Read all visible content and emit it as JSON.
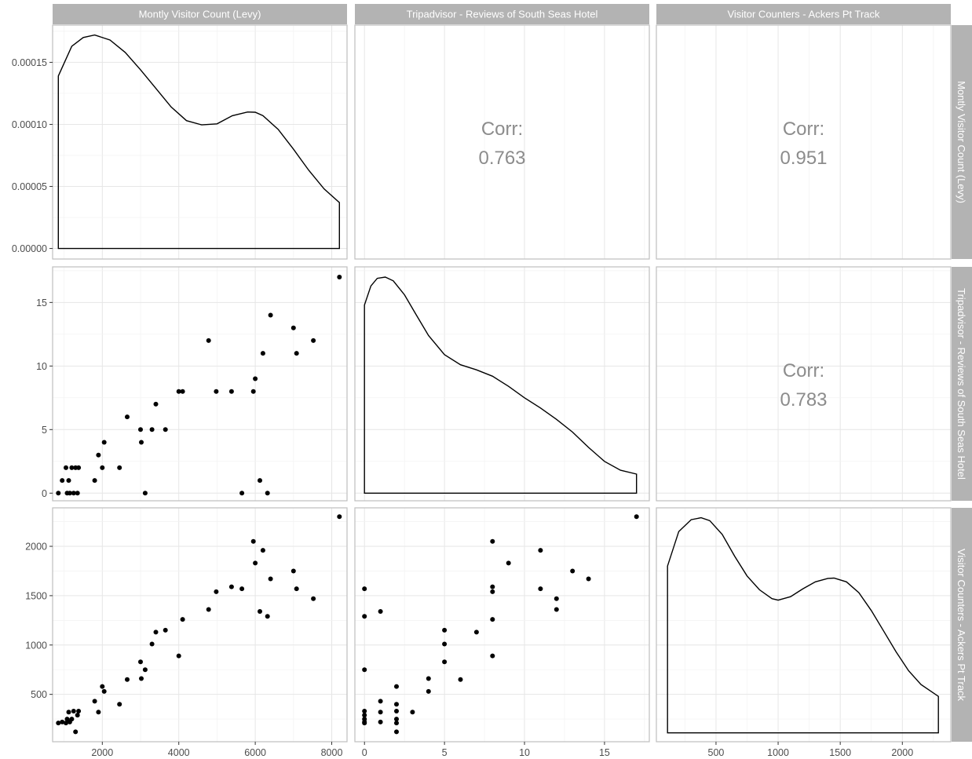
{
  "chart_data": {
    "type": "scatter",
    "variables": [
      "Montly Visitor Count (Levy)",
      "Tripadvisor - Reviews of South Seas Hotel",
      "Visitor Counters - Ackers Pt Track"
    ],
    "axis_ranges": [
      [
        700,
        8400
      ],
      [
        -0.6,
        17.8
      ],
      [
        20,
        2390
      ]
    ],
    "density_y_range": [
      -8.5e-06,
      0.00018
    ],
    "grid": true,
    "x_ticks": [
      {
        "values": [
          2000,
          4000,
          6000,
          8000
        ],
        "labels": [
          "2000",
          "4000",
          "6000",
          "8000"
        ]
      },
      {
        "values": [
          0,
          5,
          10,
          15
        ],
        "labels": [
          "0",
          "5",
          "10",
          "15"
        ]
      },
      {
        "values": [
          500,
          1000,
          1500,
          2000
        ],
        "labels": [
          "500",
          "1000",
          "1500",
          "2000"
        ]
      }
    ],
    "y_ticks": [
      {
        "values": [
          0,
          5e-05,
          0.0001,
          0.00015
        ],
        "labels": [
          "0.00000",
          "0.00005",
          "0.00010",
          "0.00015"
        ]
      },
      {
        "values": [
          0,
          5,
          10,
          15
        ],
        "labels": [
          "0",
          "5",
          "10",
          "15"
        ]
      },
      {
        "values": [
          500,
          1000,
          1500,
          2000
        ],
        "labels": [
          "500",
          "1000",
          "1500",
          "2000"
        ]
      }
    ],
    "correlations": [
      {
        "row": 0,
        "col": 1,
        "label": "Corr:",
        "value": "0.763"
      },
      {
        "row": 0,
        "col": 2,
        "label": "Corr:",
        "value": "0.951"
      },
      {
        "row": 1,
        "col": 2,
        "label": "Corr:",
        "value": "0.783"
      }
    ],
    "densities": [
      {
        "x": [
          850,
          1200,
          1500,
          1800,
          2200,
          2600,
          3000,
          3400,
          3800,
          4200,
          4600,
          5000,
          5400,
          5800,
          6000,
          6200,
          6600,
          7000,
          7400,
          7800,
          8200
        ],
        "y": [
          0.000139,
          0.000163,
          0.00017,
          0.000172,
          0.000168,
          0.000158,
          0.000144,
          0.000129,
          0.000114,
          0.000103,
          9.96e-05,
          0.0001004,
          0.000107,
          0.00011,
          0.0001098,
          0.000107,
          9.6e-05,
          8e-05,
          6.3e-05,
          4.8e-05,
          3.7e-05
        ]
      },
      {
        "x": [
          0,
          0.4,
          0.8,
          1.3,
          1.8,
          2.5,
          3.2,
          4,
          5,
          6,
          7,
          8,
          9,
          10,
          11,
          12,
          13,
          14,
          15,
          16,
          17
        ],
        "y": [
          14.8,
          16.3,
          16.9,
          17.0,
          16.7,
          15.6,
          14.1,
          12.4,
          10.9,
          10.1,
          9.7,
          9.2,
          8.4,
          7.5,
          6.7,
          5.8,
          4.8,
          3.6,
          2.5,
          1.8,
          1.5
        ]
      },
      {
        "x": [
          110,
          200,
          300,
          380,
          450,
          550,
          650,
          750,
          850,
          950,
          1000,
          1100,
          1200,
          1300,
          1400,
          1450,
          1550,
          1650,
          1750,
          1850,
          1950,
          2050,
          2150,
          2290
        ],
        "y": [
          1800,
          2150,
          2270,
          2290,
          2260,
          2120,
          1900,
          1700,
          1560,
          1470,
          1455,
          1490,
          1570,
          1640,
          1675,
          1678,
          1640,
          1530,
          1350,
          1140,
          930,
          740,
          600,
          480
        ]
      }
    ],
    "points": [
      [
        850,
        0,
        210
      ],
      [
        950,
        1,
        220
      ],
      [
        1050,
        2,
        210
      ],
      [
        1080,
        0,
        250
      ],
      [
        1120,
        1,
        320
      ],
      [
        1150,
        0,
        220
      ],
      [
        1200,
        2,
        250
      ],
      [
        1250,
        0,
        330
      ],
      [
        1300,
        2,
        120
      ],
      [
        1350,
        0,
        290
      ],
      [
        1380,
        2,
        330
      ],
      [
        1800,
        1,
        430
      ],
      [
        1900,
        3,
        320
      ],
      [
        2000,
        2,
        580
      ],
      [
        2050,
        4,
        530
      ],
      [
        2450,
        2,
        400
      ],
      [
        2650,
        6,
        650
      ],
      [
        3000,
        5,
        830
      ],
      [
        3020,
        4,
        660
      ],
      [
        3120,
        0,
        750
      ],
      [
        3300,
        5,
        1010
      ],
      [
        3400,
        7,
        1130
      ],
      [
        3650,
        5,
        1150
      ],
      [
        4000,
        8,
        890
      ],
      [
        4100,
        8,
        1260
      ],
      [
        4780,
        12,
        1360
      ],
      [
        4980,
        8,
        1540
      ],
      [
        5380,
        8,
        1590
      ],
      [
        5650,
        0,
        1570
      ],
      [
        5950,
        8,
        2050
      ],
      [
        6000,
        9,
        1830
      ],
      [
        6120,
        1,
        1340
      ],
      [
        6200,
        11,
        1960
      ],
      [
        6320,
        0,
        1290
      ],
      [
        6400,
        14,
        1670
      ],
      [
        7000,
        13,
        1750
      ],
      [
        7080,
        11,
        1570
      ],
      [
        7520,
        12,
        1470
      ],
      [
        8200,
        17,
        2300
      ]
    ]
  }
}
